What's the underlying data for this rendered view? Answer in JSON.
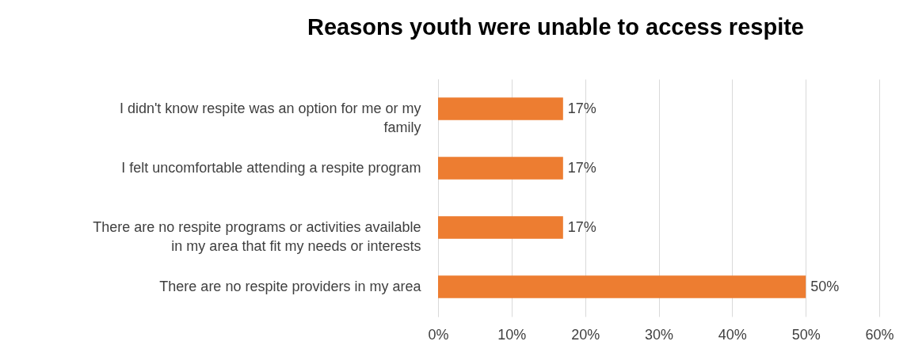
{
  "chart_data": {
    "type": "bar",
    "orientation": "horizontal",
    "title": "Reasons youth were unable to access respite",
    "categories": [
      "I didn't know respite was an option for me or my family",
      "I felt uncomfortable attending a respite program",
      "There are no respite programs or activities available in my area that fit my needs or interests",
      "There are no respite providers in my area"
    ],
    "values": [
      17,
      17,
      17,
      50
    ],
    "value_labels": [
      "17%",
      "17%",
      "17%",
      "50%"
    ],
    "color": "#ed7d31",
    "xlim": [
      0,
      60
    ],
    "xticks": [
      {
        "value": 0,
        "label": "0%"
      },
      {
        "value": 10,
        "label": "10%"
      },
      {
        "value": 20,
        "label": "20%"
      },
      {
        "value": 30,
        "label": "30%"
      },
      {
        "value": 40,
        "label": "40%"
      },
      {
        "value": 50,
        "label": "50%"
      },
      {
        "value": 60,
        "label": "60%"
      }
    ],
    "grid": "x"
  }
}
